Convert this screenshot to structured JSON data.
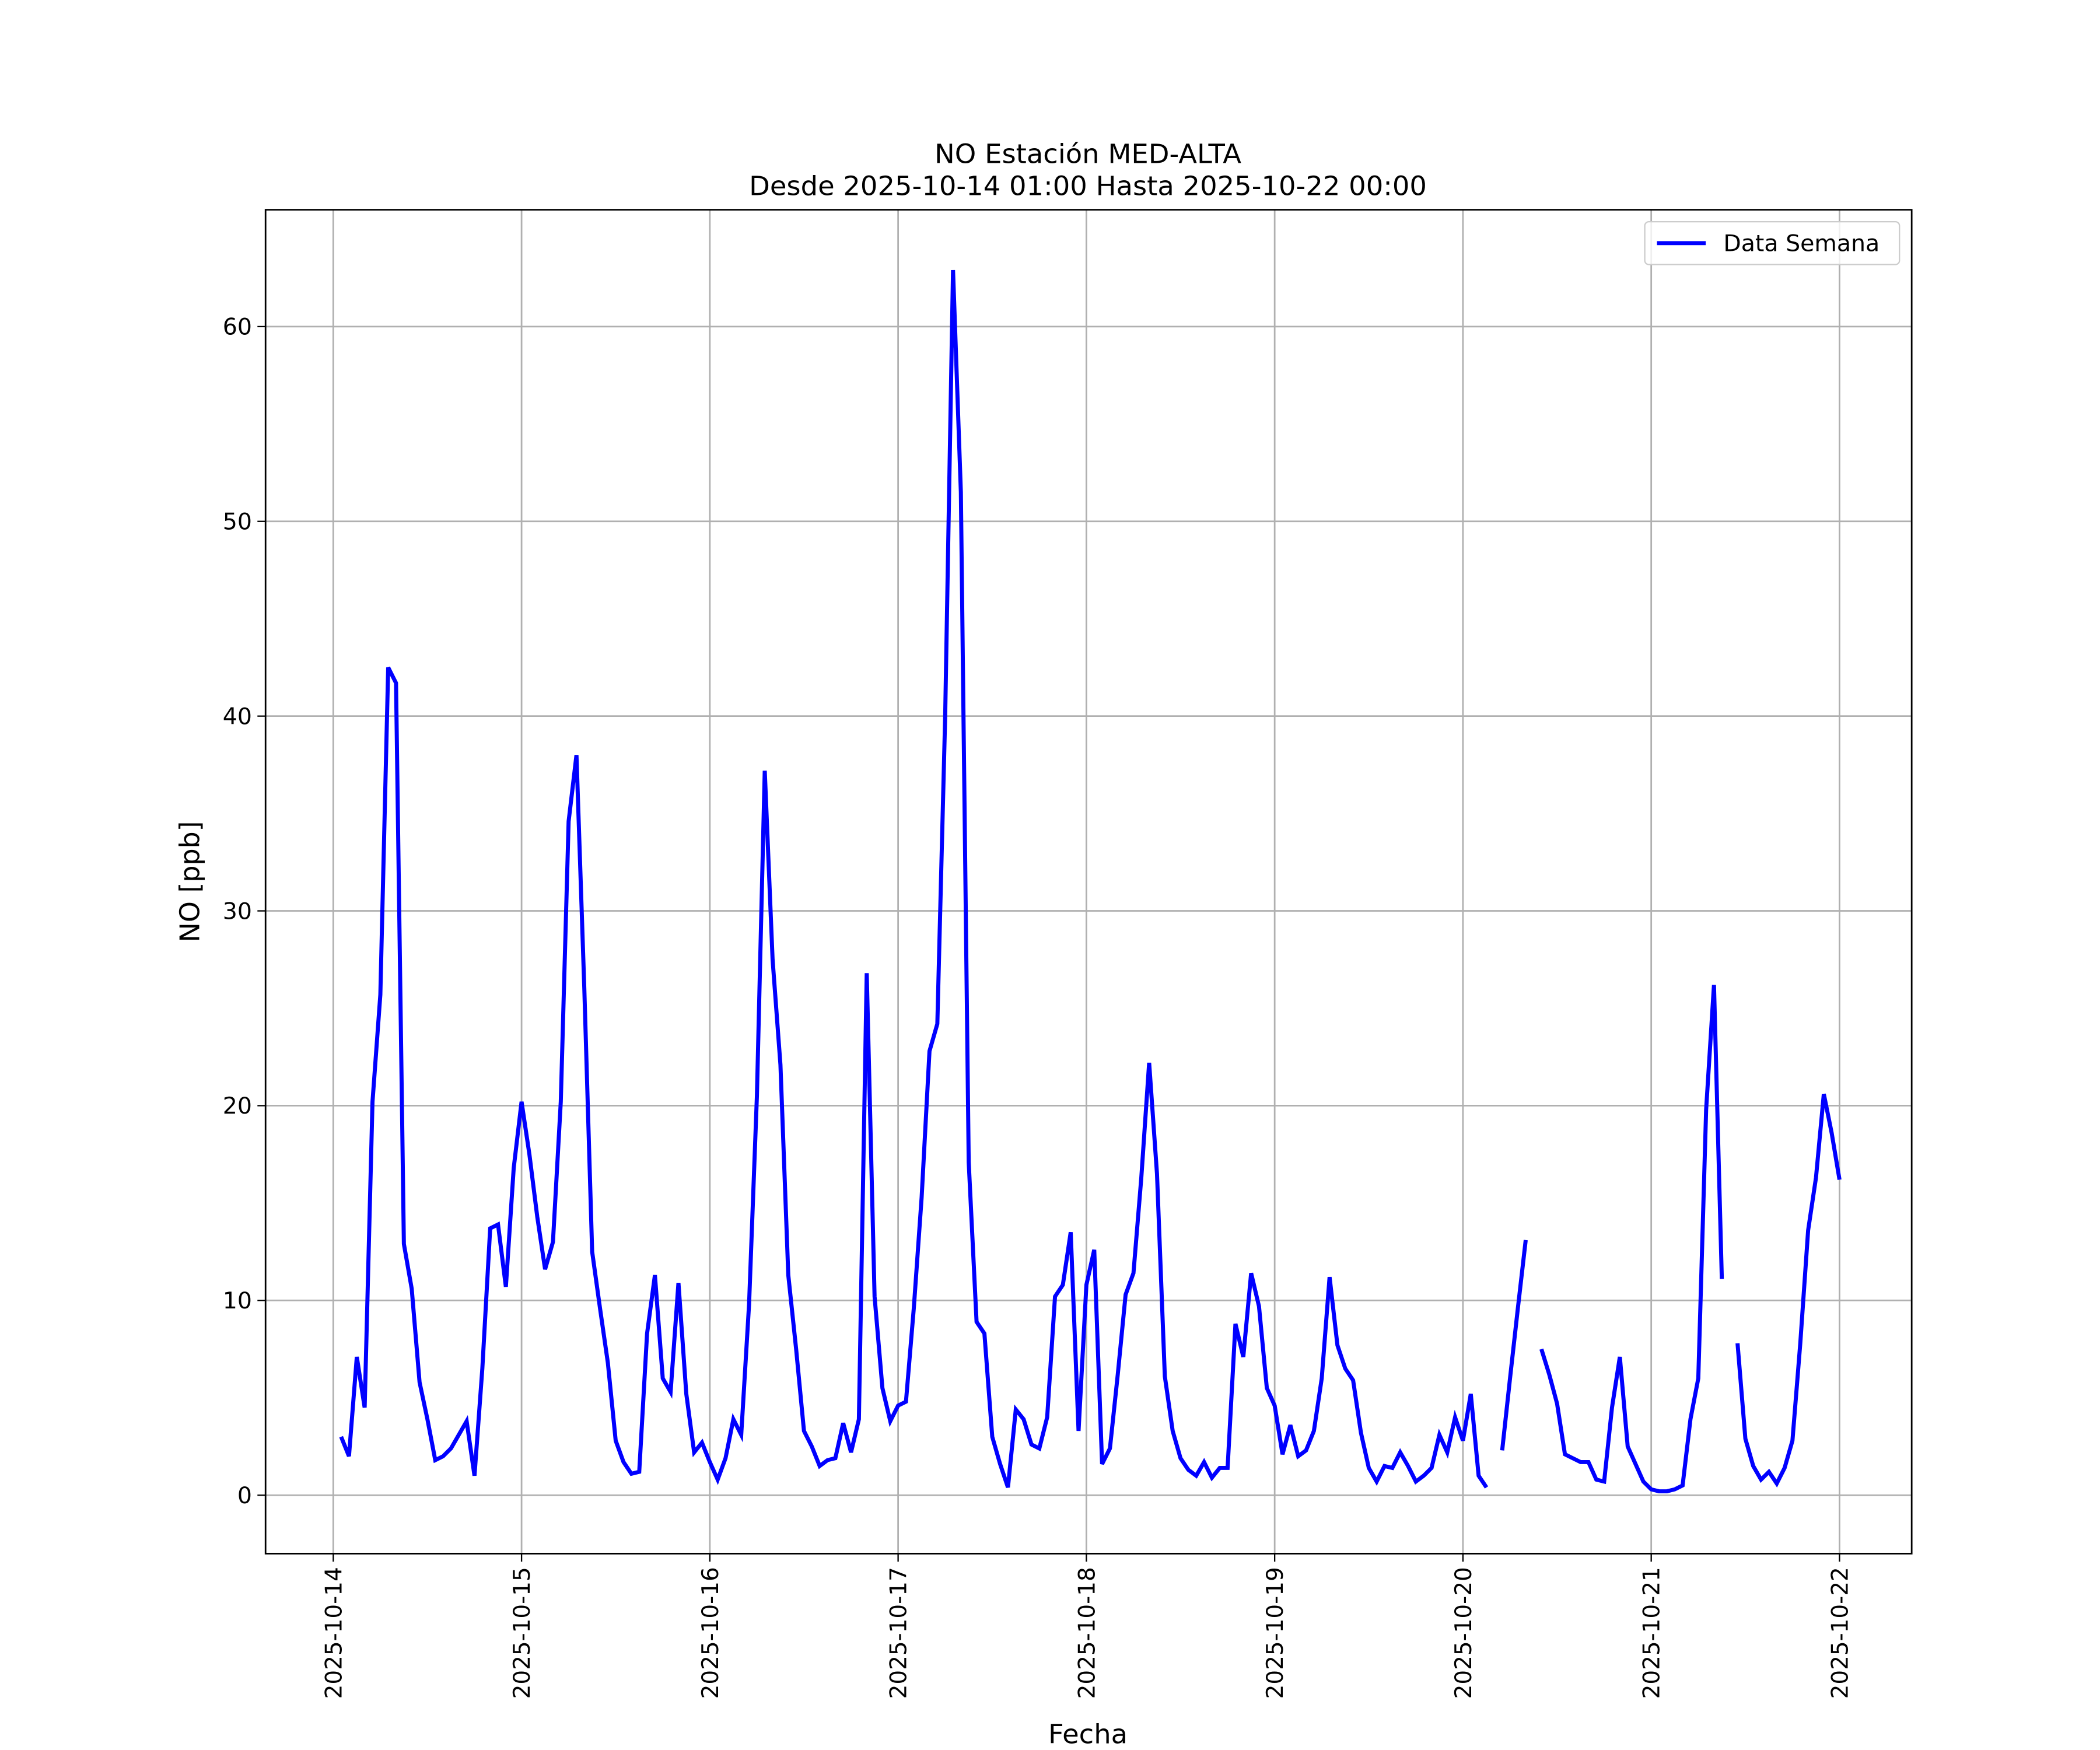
{
  "chart_data": {
    "type": "line",
    "title": "NO Estación MED-ALTA",
    "subtitle": "Desde 2025-10-14 01:00 Hasta 2025-10-22 00:00",
    "xlabel": "Fecha",
    "ylabel": "NO [ppb]",
    "legend": "upper right",
    "grid": true,
    "xlim": [
      "2025-10-13 15:22",
      "2025-10-22 09:12"
    ],
    "xticks": [
      "2025-10-14",
      "2025-10-15",
      "2025-10-16",
      "2025-10-17",
      "2025-10-18",
      "2025-10-19",
      "2025-10-20",
      "2025-10-21",
      "2025-10-22"
    ],
    "ylim": [
      -3,
      66
    ],
    "yticks": [
      0,
      10,
      20,
      30,
      40,
      50,
      60
    ],
    "x": [
      "2025-10-14 01:00",
      "2025-10-14 02:00",
      "2025-10-14 03:00",
      "2025-10-14 04:00",
      "2025-10-14 05:00",
      "2025-10-14 06:00",
      "2025-10-14 07:00",
      "2025-10-14 08:00",
      "2025-10-14 09:00",
      "2025-10-14 10:00",
      "2025-10-14 11:00",
      "2025-10-14 12:00",
      "2025-10-14 13:00",
      "2025-10-14 14:00",
      "2025-10-14 15:00",
      "2025-10-14 16:00",
      "2025-10-14 17:00",
      "2025-10-14 18:00",
      "2025-10-14 19:00",
      "2025-10-14 20:00",
      "2025-10-14 21:00",
      "2025-10-14 22:00",
      "2025-10-14 23:00",
      "2025-10-15 00:00",
      "2025-10-15 01:00",
      "2025-10-15 02:00",
      "2025-10-15 03:00",
      "2025-10-15 04:00",
      "2025-10-15 05:00",
      "2025-10-15 06:00",
      "2025-10-15 07:00",
      "2025-10-15 08:00",
      "2025-10-15 09:00",
      "2025-10-15 10:00",
      "2025-10-15 11:00",
      "2025-10-15 12:00",
      "2025-10-15 13:00",
      "2025-10-15 14:00",
      "2025-10-15 15:00",
      "2025-10-15 16:00",
      "2025-10-15 17:00",
      "2025-10-15 18:00",
      "2025-10-15 19:00",
      "2025-10-15 20:00",
      "2025-10-15 21:00",
      "2025-10-15 22:00",
      "2025-10-15 23:00",
      "2025-10-16 00:00",
      "2025-10-16 01:00",
      "2025-10-16 02:00",
      "2025-10-16 03:00",
      "2025-10-16 04:00",
      "2025-10-16 05:00",
      "2025-10-16 06:00",
      "2025-10-16 07:00",
      "2025-10-16 08:00",
      "2025-10-16 09:00",
      "2025-10-16 10:00",
      "2025-10-16 11:00",
      "2025-10-16 12:00",
      "2025-10-16 13:00",
      "2025-10-16 14:00",
      "2025-10-16 15:00",
      "2025-10-16 16:00",
      "2025-10-16 17:00",
      "2025-10-16 18:00",
      "2025-10-16 19:00",
      "2025-10-16 20:00",
      "2025-10-16 21:00",
      "2025-10-16 22:00",
      "2025-10-16 23:00",
      "2025-10-17 00:00",
      "2025-10-17 01:00",
      "2025-10-17 02:00",
      "2025-10-17 03:00",
      "2025-10-17 04:00",
      "2025-10-17 05:00",
      "2025-10-17 06:00",
      "2025-10-17 07:00",
      "2025-10-17 08:00",
      "2025-10-17 09:00",
      "2025-10-17 10:00",
      "2025-10-17 11:00",
      "2025-10-17 12:00",
      "2025-10-17 13:00",
      "2025-10-17 14:00",
      "2025-10-17 15:00",
      "2025-10-17 16:00",
      "2025-10-17 17:00",
      "2025-10-17 18:00",
      "2025-10-17 19:00",
      "2025-10-17 20:00",
      "2025-10-17 21:00",
      "2025-10-17 22:00",
      "2025-10-17 23:00",
      "2025-10-18 00:00",
      "2025-10-18 01:00",
      "2025-10-18 02:00",
      "2025-10-18 03:00",
      "2025-10-18 04:00",
      "2025-10-18 05:00",
      "2025-10-18 06:00",
      "2025-10-18 07:00",
      "2025-10-18 08:00",
      "2025-10-18 09:00",
      "2025-10-18 10:00",
      "2025-10-18 11:00",
      "2025-10-18 12:00",
      "2025-10-18 13:00",
      "2025-10-18 14:00",
      "2025-10-18 15:00",
      "2025-10-18 16:00",
      "2025-10-18 17:00",
      "2025-10-18 18:00",
      "2025-10-18 19:00",
      "2025-10-18 20:00",
      "2025-10-18 21:00",
      "2025-10-18 22:00",
      "2025-10-18 23:00",
      "2025-10-19 00:00",
      "2025-10-19 01:00",
      "2025-10-19 02:00",
      "2025-10-19 03:00",
      "2025-10-19 04:00",
      "2025-10-19 05:00",
      "2025-10-19 06:00",
      "2025-10-19 07:00",
      "2025-10-19 08:00",
      "2025-10-19 09:00",
      "2025-10-19 10:00",
      "2025-10-19 11:00",
      "2025-10-19 12:00",
      "2025-10-19 13:00",
      "2025-10-19 14:00",
      "2025-10-19 15:00",
      "2025-10-19 16:00",
      "2025-10-19 17:00",
      "2025-10-19 18:00",
      "2025-10-19 19:00",
      "2025-10-19 20:00",
      "2025-10-19 21:00",
      "2025-10-19 22:00",
      "2025-10-19 23:00",
      "2025-10-20 00:00",
      "2025-10-20 01:00",
      "2025-10-20 02:00",
      "2025-10-20 03:00",
      "2025-10-20 04:00",
      "2025-10-20 05:00",
      "2025-10-20 06:00",
      "2025-10-20 07:00",
      "2025-10-20 08:00",
      "2025-10-20 09:00",
      "2025-10-20 10:00",
      "2025-10-20 11:00",
      "2025-10-20 12:00",
      "2025-10-20 13:00",
      "2025-10-20 14:00",
      "2025-10-20 15:00",
      "2025-10-20 16:00",
      "2025-10-20 17:00",
      "2025-10-20 18:00",
      "2025-10-20 19:00",
      "2025-10-20 20:00",
      "2025-10-20 21:00",
      "2025-10-20 22:00",
      "2025-10-20 23:00",
      "2025-10-21 00:00",
      "2025-10-21 01:00",
      "2025-10-21 02:00",
      "2025-10-21 03:00",
      "2025-10-21 04:00",
      "2025-10-21 05:00",
      "2025-10-21 06:00",
      "2025-10-21 07:00",
      "2025-10-21 08:00",
      "2025-10-21 09:00",
      "2025-10-21 10:00",
      "2025-10-21 11:00",
      "2025-10-21 12:00",
      "2025-10-21 13:00",
      "2025-10-21 14:00",
      "2025-10-21 15:00",
      "2025-10-21 16:00",
      "2025-10-21 17:00",
      "2025-10-21 18:00",
      "2025-10-21 19:00",
      "2025-10-21 20:00",
      "2025-10-21 21:00",
      "2025-10-21 22:00",
      "2025-10-21 23:00",
      "2025-10-22 00:00"
    ],
    "series": [
      {
        "name": "Data Semana",
        "color": "#0000ff",
        "values": [
          3.0,
          2.0,
          7.1,
          4.5,
          20.2,
          25.7,
          42.5,
          41.7,
          12.9,
          10.6,
          5.8,
          3.9,
          1.8,
          2.0,
          2.4,
          3.1,
          3.8,
          1.0,
          6.5,
          13.7,
          13.9,
          10.7,
          16.8,
          20.2,
          17.5,
          14.3,
          11.6,
          13.0,
          20.2,
          34.6,
          38.0,
          26.0,
          12.5,
          9.6,
          6.8,
          2.8,
          1.7,
          1.1,
          1.2,
          8.3,
          11.3,
          6.0,
          5.3,
          10.9,
          5.2,
          2.2,
          2.7,
          1.7,
          0.8,
          1.9,
          3.9,
          3.1,
          9.8,
          20.5,
          37.2,
          27.5,
          22.1,
          11.3,
          7.5,
          3.3,
          2.5,
          1.5,
          1.8,
          1.9,
          3.7,
          2.2,
          3.9,
          26.8,
          10.2,
          5.5,
          3.8,
          4.6,
          4.8,
          9.6,
          15.3,
          22.8,
          24.2,
          40.0,
          62.9,
          51.5,
          17.1,
          8.9,
          8.3,
          3.0,
          1.6,
          0.4,
          4.4,
          3.9,
          2.6,
          2.4,
          4.0,
          10.2,
          10.8,
          13.5,
          3.3,
          10.8,
          12.6,
          1.6,
          2.4,
          6.2,
          10.3,
          11.4,
          16.3,
          22.2,
          16.5,
          6.1,
          3.3,
          1.9,
          1.3,
          1.0,
          1.7,
          0.9,
          1.4,
          1.4,
          8.8,
          7.1,
          11.4,
          9.7,
          5.5,
          4.6,
          2.1,
          3.6,
          2.0,
          2.3,
          3.3,
          6.0,
          11.2,
          7.7,
          6.5,
          5.9,
          3.2,
          1.4,
          0.7,
          1.5,
          1.4,
          2.2,
          1.5,
          0.7,
          1.0,
          1.4,
          3.1,
          2.2,
          4.0,
          2.8,
          5.2,
          1.0,
          0.4,
          null,
          2.3,
          6.0,
          9.6,
          13.1,
          null,
          7.5,
          6.2,
          4.7,
          2.1,
          1.9,
          1.7,
          1.7,
          0.8,
          0.7,
          4.5,
          7.1,
          2.5,
          1.6,
          0.7,
          0.3,
          0.2,
          0.2,
          0.3,
          0.5,
          3.9,
          6.0,
          19.8,
          26.2,
          11.1,
          null,
          7.8,
          2.9,
          1.5,
          0.8,
          1.2,
          0.6,
          1.4,
          2.8,
          7.8,
          13.6,
          16.3,
          20.6,
          18.6,
          16.2
        ]
      }
    ]
  }
}
